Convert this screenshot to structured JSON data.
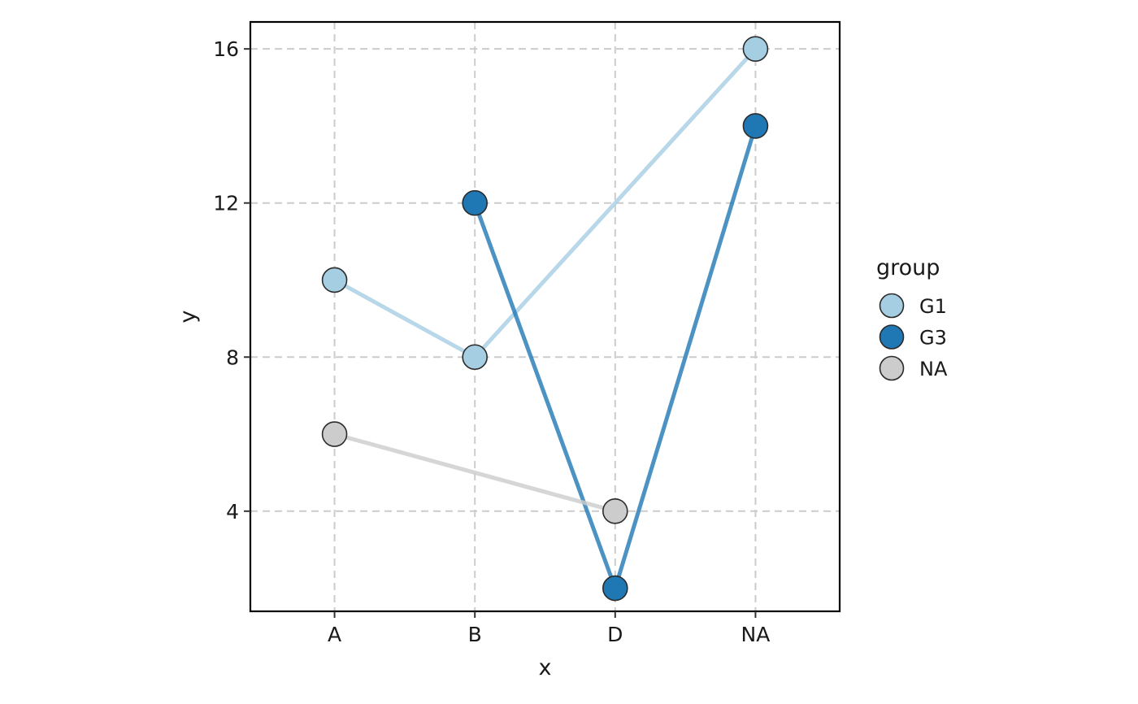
{
  "chart_data": {
    "type": "line",
    "title": "",
    "xlabel": "x",
    "ylabel": "y",
    "categories": [
      "A",
      "B",
      "D",
      "NA"
    ],
    "ylim": [
      1.4,
      16.7
    ],
    "yticks": [
      4,
      8,
      12,
      16
    ],
    "grid": true,
    "legend": {
      "title": "group",
      "position": "right",
      "entries": [
        "G1",
        "G3",
        "NA"
      ]
    },
    "series": [
      {
        "name": "G1",
        "color": "#a6cee3",
        "points": [
          {
            "x": "A",
            "y": 10
          },
          {
            "x": "B",
            "y": 8
          },
          {
            "x": "NA",
            "y": 16
          }
        ]
      },
      {
        "name": "G3",
        "color": "#1f78b4",
        "points": [
          {
            "x": "B",
            "y": 12
          },
          {
            "x": "D",
            "y": 2
          },
          {
            "x": "NA",
            "y": 14
          }
        ]
      },
      {
        "name": "NA",
        "color": "#cccccc",
        "points": [
          {
            "x": "A",
            "y": 6
          },
          {
            "x": "D",
            "y": 4
          }
        ]
      }
    ]
  }
}
